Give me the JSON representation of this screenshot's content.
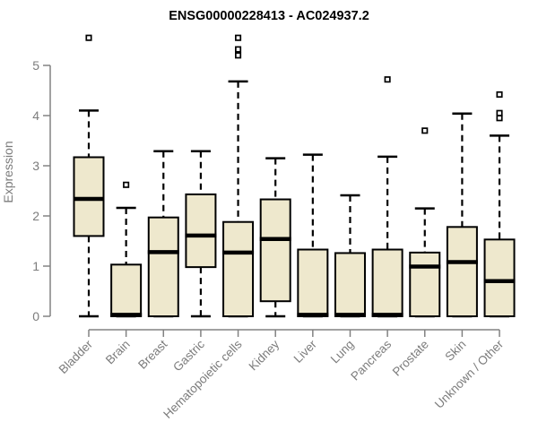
{
  "chart_data": {
    "type": "boxplot",
    "title": "ENSG00000228413 - AC024937.2",
    "xlabel": "",
    "ylabel": "Expression",
    "ylim": [
      0,
      5
    ],
    "yticks": [
      0,
      1,
      2,
      3,
      4,
      5
    ],
    "grid": false,
    "legend": "none",
    "categories": [
      "Bladder",
      "Brain",
      "Breast",
      "Gastric",
      "Hematopoietic cells",
      "Kidney",
      "Liver",
      "Lung",
      "Pancreas",
      "Prostate",
      "Skin",
      "Unknown / Other"
    ],
    "boxes": [
      {
        "category": "Bladder",
        "whisker_low": 0,
        "q1": 1.6,
        "median": 2.34,
        "q3": 3.17,
        "whisker_high": 4.1,
        "outliers": [
          5.55
        ]
      },
      {
        "category": "Brain",
        "whisker_low": 0,
        "q1": 0.0,
        "median": 0.03,
        "q3": 1.03,
        "whisker_high": 2.16,
        "outliers": [
          2.62
        ]
      },
      {
        "category": "Breast",
        "whisker_low": 0,
        "q1": 0.0,
        "median": 1.28,
        "q3": 1.97,
        "whisker_high": 3.29,
        "outliers": []
      },
      {
        "category": "Gastric",
        "whisker_low": 0,
        "q1": 0.98,
        "median": 1.61,
        "q3": 2.43,
        "whisker_high": 3.29,
        "outliers": []
      },
      {
        "category": "Hematopoietic cells",
        "whisker_low": 0,
        "q1": 0.0,
        "median": 1.27,
        "q3": 1.88,
        "whisker_high": 4.68,
        "outliers": [
          5.55,
          5.32,
          5.2
        ]
      },
      {
        "category": "Kidney",
        "whisker_low": 0,
        "q1": 0.3,
        "median": 1.54,
        "q3": 2.33,
        "whisker_high": 3.15,
        "outliers": []
      },
      {
        "category": "Liver",
        "whisker_low": 0,
        "q1": 0.0,
        "median": 0.03,
        "q3": 1.33,
        "whisker_high": 3.22,
        "outliers": []
      },
      {
        "category": "Lung",
        "whisker_low": 0,
        "q1": 0.0,
        "median": 0.03,
        "q3": 1.26,
        "whisker_high": 2.41,
        "outliers": []
      },
      {
        "category": "Pancreas",
        "whisker_low": 0,
        "q1": 0.0,
        "median": 0.03,
        "q3": 1.33,
        "whisker_high": 3.18,
        "outliers": [
          4.72
        ]
      },
      {
        "category": "Prostate",
        "whisker_low": 0,
        "q1": 0.0,
        "median": 0.99,
        "q3": 1.27,
        "whisker_high": 2.15,
        "outliers": [
          3.7
        ]
      },
      {
        "category": "Skin",
        "whisker_low": 0,
        "q1": 0.0,
        "median": 1.08,
        "q3": 1.78,
        "whisker_high": 4.04,
        "outliers": []
      },
      {
        "category": "Unknown / Other",
        "whisker_low": 0,
        "q1": 0.0,
        "median": 0.7,
        "q3": 1.53,
        "whisker_high": 3.6,
        "outliers": [
          4.42,
          4.05,
          3.95
        ]
      }
    ],
    "colors": {
      "box_fill": "#EEE8CD",
      "box_border": "#000000",
      "median": "#000000",
      "whisker": "#000000",
      "outlier_stroke": "#000000",
      "outlier_fill": "#FFFFFF",
      "axis": "#828282",
      "tick_text": "#7C7C7C",
      "title_text": "#000000",
      "background": "#FFFFFF"
    }
  }
}
